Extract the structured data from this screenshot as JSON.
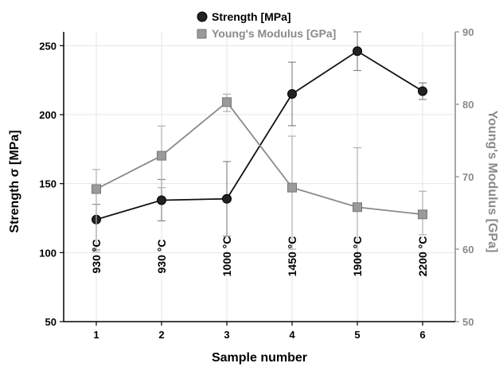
{
  "chart_data": {
    "type": "line",
    "x": [
      1,
      2,
      3,
      4,
      5,
      6
    ],
    "xlabel": "Sample number",
    "ylabel": "Strength  σ [MPa]",
    "y2label": "Young's Modulus [GPa]",
    "xlim": [
      0.5,
      6.5
    ],
    "ylim": [
      50,
      260
    ],
    "y2lim": [
      50,
      90
    ],
    "xticks": [
      "1",
      "2",
      "3",
      "4",
      "5",
      "6"
    ],
    "yticks": [
      "50",
      "100",
      "150",
      "200",
      "250"
    ],
    "y2ticks": [
      "50",
      "60",
      "70",
      "80",
      "90"
    ],
    "grid": true,
    "legend_position": "top-left",
    "series": [
      {
        "name": "Strength [MPa]",
        "axis": "left",
        "color": "#111111",
        "marker": "circle",
        "values": [
          124,
          138,
          139,
          215,
          246,
          217
        ],
        "err_low": [
          102,
          123,
          112,
          192,
          232,
          211
        ],
        "err_high": [
          135,
          153,
          166,
          238,
          260,
          223
        ]
      },
      {
        "name": "Young's Modulus [GPa]",
        "axis": "right",
        "color": "#8a8a8a",
        "marker": "square",
        "values": [
          68.3,
          72.9,
          80.3,
          68.5,
          65.8,
          64.8
        ],
        "err_low": [
          59.6,
          68.5,
          79.0,
          60.0,
          58.5,
          62.0
        ],
        "err_high": [
          71.0,
          77.0,
          81.4,
          75.6,
          74.0,
          68.0
        ]
      }
    ],
    "annotations": [
      {
        "x": 1,
        "label": "930 °C"
      },
      {
        "x": 2,
        "label": "930 °C"
      },
      {
        "x": 3,
        "label": "1000 °C"
      },
      {
        "x": 4,
        "label": "1450 °C"
      },
      {
        "x": 5,
        "label": "1900 °C"
      },
      {
        "x": 6,
        "label": "2200 °C"
      }
    ],
    "colors": {
      "left_axis": "#000000",
      "right_axis": "#8a8a8a",
      "grid": "#e4e4e4"
    }
  }
}
